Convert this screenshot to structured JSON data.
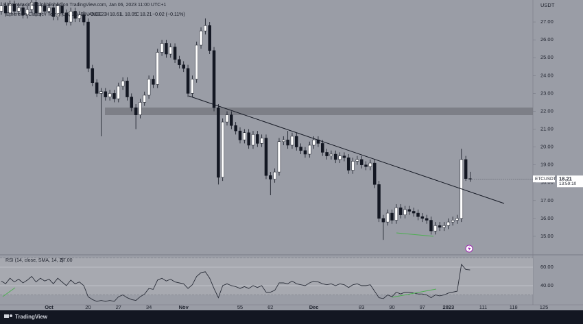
{
  "header": {
    "publisher": "BitcoinMaximus1 published on TradingView.com, Jan 06, 2023 11:00 UTC+1",
    "symbol": "Ethereum Classic / Tether US, 1D, BINANCE",
    "ohlc_letters": [
      "O",
      "H",
      "L",
      "C"
    ],
    "change": "−0.02 (−0.11%)"
  },
  "chart_data": [
    {
      "type": "candlestick",
      "currency": "USDT",
      "symbol_tag": "ETCUSDT",
      "countdown": "13:59:10",
      "up_color": "#ffffff",
      "down_color": "#131722",
      "open": [
        27.6,
        27.9,
        27.5,
        28.0,
        27.6,
        27.8,
        27.4,
        27.7,
        28.1,
        27.5,
        27.9,
        27.6,
        27.8,
        27.3,
        27.9,
        27.5,
        27.0,
        27.6,
        27.2,
        27.4,
        27.0,
        24.4,
        23.6,
        23.0,
        23.1,
        22.8,
        23.0,
        22.7,
        23.4,
        23.7,
        22.8,
        22.2,
        21.8,
        22.5,
        22.9,
        23.8,
        23.5,
        25.3,
        25.8,
        25.2,
        25.6,
        24.9,
        24.6,
        24.4,
        23.0,
        23.8,
        25.7,
        26.5,
        26.8,
        25.4,
        22.2,
        18.3,
        21.4,
        21.8,
        21.2,
        20.9,
        20.4,
        20.8,
        20.1,
        20.7,
        20.2,
        20.5,
        18.4,
        18.2,
        18.6,
        20.3,
        20.4,
        20.1,
        20.6,
        20.0,
        19.8,
        19.6,
        20.1,
        20.4,
        20.2,
        19.7,
        19.5,
        19.6,
        19.3,
        19.5,
        19.4,
        18.7,
        19.2,
        19.3,
        19.0,
        18.9,
        19.1,
        17.9,
        16.0,
        15.8,
        16.3,
        15.9,
        16.6,
        16.2,
        16.5,
        16.4,
        16.3,
        16.1,
        16.0,
        15.9,
        15.3,
        15.6,
        15.5,
        15.6,
        15.8,
        15.9,
        16.0,
        19.3,
        18.23
      ],
      "high": [
        28.1,
        28.1,
        28.2,
        28.2,
        28.0,
        28.0,
        27.9,
        28.3,
        28.3,
        28.1,
        28.1,
        28.0,
        28.0,
        28.1,
        28.1,
        27.7,
        27.8,
        27.8,
        27.6,
        27.6,
        27.2,
        24.6,
        23.8,
        23.3,
        23.3,
        23.2,
        23.2,
        23.6,
        23.9,
        23.9,
        23.0,
        22.4,
        22.7,
        23.1,
        24.0,
        24.0,
        25.5,
        26.0,
        26.0,
        25.8,
        25.8,
        25.1,
        24.8,
        24.6,
        24.0,
        25.9,
        26.7,
        27.2,
        27.0,
        25.6,
        22.4,
        21.6,
        22.0,
        22.0,
        21.4,
        21.1,
        21.0,
        21.0,
        20.9,
        20.9,
        20.7,
        20.7,
        18.6,
        18.8,
        20.5,
        20.6,
        20.9,
        20.8,
        20.8,
        20.2,
        20.0,
        20.3,
        20.6,
        20.6,
        20.4,
        19.9,
        19.8,
        19.8,
        19.7,
        19.7,
        19.6,
        19.4,
        19.5,
        19.5,
        19.2,
        19.3,
        19.3,
        18.1,
        16.2,
        16.5,
        16.5,
        16.8,
        16.8,
        16.7,
        16.7,
        16.6,
        16.5,
        16.3,
        16.2,
        16.1,
        15.8,
        15.8,
        15.8,
        16.0,
        16.1,
        16.2,
        19.9,
        19.5,
        18.61
      ],
      "low": [
        27.4,
        27.3,
        27.3,
        27.4,
        27.4,
        27.2,
        27.2,
        27.5,
        27.3,
        27.3,
        27.4,
        27.4,
        27.1,
        27.1,
        27.3,
        26.8,
        26.8,
        27.0,
        27.0,
        26.8,
        24.2,
        23.4,
        22.8,
        20.6,
        22.6,
        22.6,
        22.5,
        22.5,
        23.2,
        22.6,
        22.0,
        21.0,
        21.6,
        22.3,
        22.7,
        23.3,
        23.3,
        25.1,
        25.0,
        25.0,
        24.7,
        24.4,
        24.2,
        22.8,
        22.8,
        23.6,
        25.5,
        26.3,
        25.2,
        22.0,
        17.9,
        18.1,
        21.2,
        21.0,
        20.7,
        20.2,
        20.2,
        19.9,
        19.9,
        20.0,
        20.0,
        18.2,
        17.3,
        18.0,
        18.4,
        20.1,
        19.9,
        19.9,
        19.8,
        19.6,
        19.4,
        19.4,
        19.9,
        20.0,
        19.5,
        19.3,
        19.3,
        19.1,
        19.1,
        19.2,
        18.5,
        18.5,
        19.0,
        18.8,
        18.7,
        18.7,
        17.7,
        15.8,
        14.8,
        15.6,
        15.7,
        15.7,
        16.0,
        16.0,
        16.2,
        16.1,
        15.9,
        15.8,
        15.7,
        15.1,
        15.1,
        15.3,
        15.3,
        15.4,
        15.6,
        15.7,
        15.8,
        18.1,
        18.05
      ],
      "close": [
        27.9,
        27.5,
        28.0,
        27.6,
        27.8,
        27.4,
        27.7,
        28.1,
        27.5,
        27.9,
        27.6,
        27.8,
        27.3,
        27.9,
        27.5,
        27.0,
        27.6,
        27.2,
        27.4,
        27.0,
        24.4,
        23.6,
        23.0,
        23.1,
        22.8,
        23.0,
        22.7,
        23.4,
        23.7,
        22.8,
        22.2,
        21.8,
        22.5,
        22.9,
        23.8,
        23.5,
        25.3,
        25.8,
        25.2,
        25.6,
        24.9,
        24.6,
        24.4,
        23.0,
        23.8,
        25.7,
        26.5,
        26.8,
        25.4,
        22.2,
        18.3,
        21.4,
        21.8,
        21.2,
        20.9,
        20.4,
        20.8,
        20.1,
        20.7,
        20.2,
        20.5,
        18.4,
        18.2,
        18.6,
        20.3,
        20.4,
        20.1,
        20.6,
        20.0,
        19.8,
        19.6,
        20.1,
        20.4,
        20.2,
        19.7,
        19.5,
        19.6,
        19.3,
        19.5,
        19.4,
        18.7,
        19.2,
        19.3,
        19.0,
        18.9,
        19.1,
        17.9,
        16.0,
        15.8,
        16.3,
        15.9,
        16.6,
        16.2,
        16.5,
        16.4,
        16.3,
        16.1,
        16.0,
        15.9,
        15.3,
        15.6,
        15.5,
        15.6,
        15.8,
        15.9,
        16.0,
        19.3,
        18.23,
        18.21
      ],
      "xlim": [
        -0.3,
        134
      ],
      "xticks": [
        {
          "value": 11,
          "label": "Oct"
        },
        20,
        27,
        34,
        {
          "value": 42,
          "label": "Nov"
        },
        55,
        62,
        {
          "value": 72,
          "label": "Dec"
        },
        83,
        90,
        97,
        {
          "value": 103,
          "label": "2023"
        },
        111,
        118,
        125
      ],
      "ylim": [
        14.04,
        28.23
      ],
      "yticks": [
        {
          "value": 15,
          "label": "15.00"
        },
        {
          "value": 16,
          "label": "16.00"
        },
        {
          "value": 17,
          "label": "17.00"
        },
        {
          "value": 18,
          "label": "18.00"
        },
        {
          "value": 19,
          "label": "19.00"
        },
        {
          "value": 20,
          "label": "20.00"
        },
        {
          "value": 21,
          "label": "21.00"
        },
        {
          "value": 22,
          "label": "22.00"
        },
        {
          "value": 23,
          "label": "23.00"
        },
        {
          "value": 24,
          "label": "24.00"
        },
        {
          "value": 25,
          "label": "25.00"
        },
        {
          "value": 26,
          "label": "26.00"
        },
        {
          "value": 27,
          "label": "27.00"
        }
      ]
    },
    {
      "type": "line",
      "title": "RSI (14, close, SMA, 14, 2)",
      "color": "#2a2e39",
      "values": [
        45,
        42,
        48,
        44,
        47,
        43,
        46,
        50,
        44,
        48,
        45,
        47,
        42,
        48,
        44,
        40,
        46,
        42,
        44,
        40,
        28,
        25,
        23,
        24,
        23,
        24,
        23,
        28,
        30,
        27,
        25,
        24,
        28,
        31,
        37,
        36,
        46,
        48,
        45,
        47,
        44,
        43,
        42,
        37,
        41,
        50,
        54,
        55,
        48,
        37,
        27,
        40,
        42,
        40,
        39,
        37,
        39,
        37,
        40,
        38,
        40,
        33,
        33,
        35,
        43,
        43,
        42,
        45,
        42,
        41,
        40,
        43,
        45,
        44,
        42,
        41,
        42,
        40,
        42,
        41,
        38,
        41,
        42,
        40,
        40,
        41,
        34,
        27,
        26,
        30,
        28,
        33,
        31,
        33,
        33,
        32,
        31,
        31,
        30,
        27,
        30,
        29,
        30,
        32,
        33,
        34,
        63,
        57.5,
        57.0
      ],
      "value_label": "57.00",
      "bands": [
        30,
        70
      ],
      "ylim": [
        19.3,
        71.1
      ],
      "yticks": [
        {
          "value": 40,
          "label": "40.00"
        },
        {
          "value": 60,
          "label": "60.00"
        }
      ]
    }
  ],
  "footer": {
    "brand": "TradingView"
  }
}
